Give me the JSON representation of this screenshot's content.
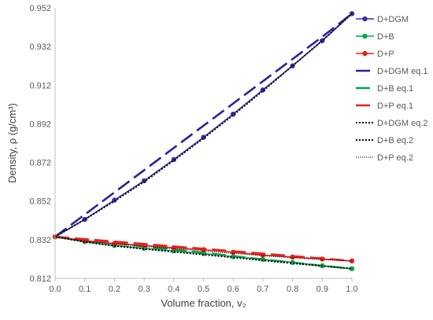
{
  "chart_data": {
    "type": "line",
    "xlabel": "Volume fraction, v₂",
    "ylabel": "Density, ρ (g/cm³)",
    "xlim": [
      0.0,
      1.0
    ],
    "ylim": [
      0.812,
      0.952
    ],
    "x_ticks": [
      "0.0",
      "0.1",
      "0.2",
      "0.3",
      "0.4",
      "0.5",
      "0.6",
      "0.7",
      "0.8",
      "0.9",
      "1.0"
    ],
    "y_ticks": [
      "0.812",
      "0.832",
      "0.852",
      "0.872",
      "0.892",
      "0.912",
      "0.932",
      "0.952"
    ],
    "grid": false,
    "legend_position": "right",
    "x": [
      0.0,
      0.1,
      0.2,
      0.3,
      0.4,
      0.5,
      0.6,
      0.7,
      0.8,
      0.9,
      1.0
    ],
    "series": [
      {
        "name": "D+DGM",
        "style": "line-marker",
        "color": "#3b2da8",
        "values": [
          0.8335,
          0.8425,
          0.8525,
          0.8625,
          0.8735,
          0.885,
          0.897,
          0.9095,
          0.922,
          0.935,
          0.949
        ]
      },
      {
        "name": "D+B",
        "style": "line-marker",
        "color": "#00a651",
        "values": [
          0.8335,
          0.831,
          0.829,
          0.8275,
          0.8262,
          0.8248,
          0.8232,
          0.8218,
          0.8202,
          0.8185,
          0.817
        ]
      },
      {
        "name": "D+P",
        "style": "line-marker",
        "color": "#e8201e",
        "values": [
          0.8335,
          0.8315,
          0.83,
          0.829,
          0.8278,
          0.8268,
          0.8255,
          0.824,
          0.823,
          0.822,
          0.821
        ]
      },
      {
        "name": "D+DGM eq.1",
        "style": "long-dash",
        "color": "#2e1fa0",
        "values": [
          0.8335,
          0.845,
          0.8565,
          0.868,
          0.8795,
          0.891,
          0.9025,
          0.914,
          0.9255,
          0.937,
          0.949
        ]
      },
      {
        "name": "D+B eq.1",
        "style": "long-dash",
        "color": "#00a651",
        "values": [
          0.8335,
          0.8318,
          0.8302,
          0.8285,
          0.8268,
          0.8252,
          0.8235,
          0.8218,
          0.8202,
          0.8185,
          0.817
        ]
      },
      {
        "name": "D+P eq.1",
        "style": "long-dash",
        "color": "#e8201e",
        "values": [
          0.8335,
          0.8323,
          0.831,
          0.8298,
          0.8285,
          0.8273,
          0.826,
          0.8248,
          0.8235,
          0.8223,
          0.821
        ]
      },
      {
        "name": "D+DGM eq.2",
        "style": "dotted",
        "color": "#000000",
        "values": [
          0.8335,
          0.8425,
          0.852,
          0.862,
          0.873,
          0.8845,
          0.8965,
          0.909,
          0.922,
          0.935,
          0.949
        ]
      },
      {
        "name": "D+B eq.2",
        "style": "dotted",
        "color": "#000000",
        "values": [
          0.8335,
          0.8308,
          0.8288,
          0.8272,
          0.8257,
          0.8243,
          0.8228,
          0.8213,
          0.8198,
          0.8184,
          0.817
        ]
      },
      {
        "name": "D+P eq.2",
        "style": "fine-dotted",
        "color": "#000000",
        "values": [
          0.8335,
          0.8313,
          0.8298,
          0.8285,
          0.8273,
          0.8261,
          0.8249,
          0.8237,
          0.8226,
          0.8217,
          0.821
        ]
      }
    ]
  }
}
